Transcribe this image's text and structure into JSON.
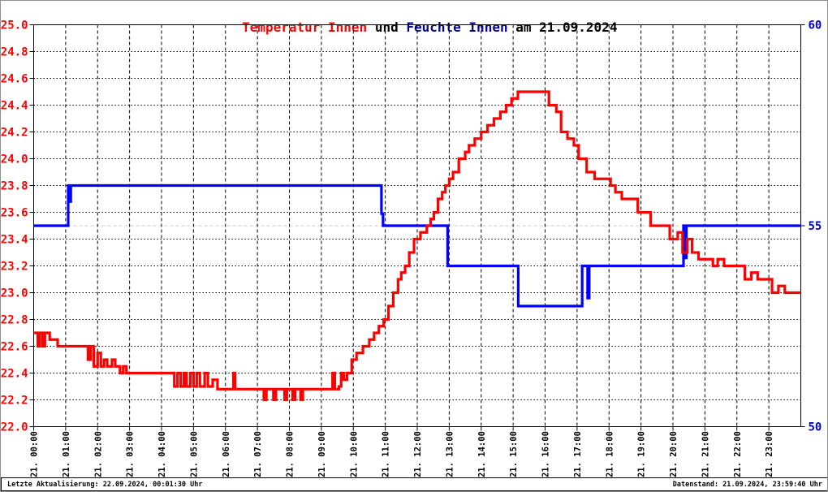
{
  "title": {
    "part_temp": "Temperatur Innen",
    "part_und": " und ",
    "part_feuchte": "Feuchte Innen",
    "part_date": " am 21.09.2024"
  },
  "footer": {
    "left": "Letzte Aktualisierung: 22.09.2024, 00:01:30 Uhr",
    "right": "Datenstand: 21.09.2024, 23:59:40 Uhr"
  },
  "colors": {
    "temperature_line": "#ff0000",
    "humidity_line": "#0000ff",
    "title_temp": "#ff0000",
    "title_feuchte": "#000099",
    "left_axis_labels": "#ff0000",
    "right_axis_labels": "#0000dd",
    "grid": "#000000",
    "grid_55_line": "#c8c8c8"
  },
  "chart_data": {
    "type": "line",
    "title": "Temperatur Innen und Feuchte Innen am 21.09.2024",
    "xlabel": "",
    "ylabel_left": "",
    "ylabel_right": "",
    "grid": true,
    "x_axis": {
      "range": [
        0,
        24
      ],
      "tick_hours": [
        0,
        1,
        2,
        3,
        4,
        5,
        6,
        7,
        8,
        9,
        10,
        11,
        12,
        13,
        14,
        15,
        16,
        17,
        18,
        19,
        20,
        21,
        22,
        23
      ],
      "tick_labels": [
        "21. 00:00",
        "21. 01:00",
        "21. 02:00",
        "21. 03:00",
        "21. 04:00",
        "21. 05:00",
        "21. 06:00",
        "21. 07:00",
        "21. 08:00",
        "21. 09:00",
        "21. 10:00",
        "21. 11:00",
        "21. 12:00",
        "21. 13:00",
        "21. 14:00",
        "21. 15:00",
        "21. 16:00",
        "21. 17:00",
        "21. 18:00",
        "21. 19:00",
        "21. 20:00",
        "21. 21:00",
        "21. 22:00",
        "21. 23:00"
      ]
    },
    "y_left": {
      "range": [
        22.0,
        25.0
      ],
      "ticks": [
        "25.0",
        "24.8",
        "24.6",
        "24.4",
        "24.2",
        "24.0",
        "23.8",
        "23.6",
        "23.4",
        "23.2",
        "23.0",
        "22.8",
        "22.6",
        "22.4",
        "22.2",
        "22.0"
      ]
    },
    "y_right": {
      "range": [
        50,
        60
      ],
      "ticks": [
        "60",
        "55",
        "50"
      ]
    },
    "series": [
      {
        "name": "Feuchte Innen",
        "axis": "right",
        "color": "#0000ff",
        "step": true,
        "points": [
          [
            0.0,
            55
          ],
          [
            1.05,
            55
          ],
          [
            1.08,
            56
          ],
          [
            1.12,
            55.6
          ],
          [
            1.16,
            56
          ],
          [
            10.85,
            56
          ],
          [
            10.88,
            55.3
          ],
          [
            10.93,
            55
          ],
          [
            12.9,
            55
          ],
          [
            12.95,
            54
          ],
          [
            15.1,
            54
          ],
          [
            15.16,
            53
          ],
          [
            17.1,
            53
          ],
          [
            17.16,
            54
          ],
          [
            17.3,
            54
          ],
          [
            17.33,
            53.2
          ],
          [
            17.38,
            54
          ],
          [
            20.3,
            54
          ],
          [
            20.33,
            55
          ],
          [
            20.37,
            54.2
          ],
          [
            20.42,
            55
          ],
          [
            24.0,
            55
          ]
        ]
      },
      {
        "name": "Temperatur Innen",
        "axis": "left",
        "color": "#ff0000",
        "step": true,
        "points": [
          [
            0.0,
            22.7
          ],
          [
            0.13,
            22.6
          ],
          [
            0.18,
            22.7
          ],
          [
            0.27,
            22.6
          ],
          [
            0.35,
            22.7
          ],
          [
            0.5,
            22.65
          ],
          [
            0.75,
            22.6
          ],
          [
            1.65,
            22.6
          ],
          [
            1.7,
            22.5
          ],
          [
            1.78,
            22.6
          ],
          [
            1.88,
            22.45
          ],
          [
            2.0,
            22.55
          ],
          [
            2.1,
            22.45
          ],
          [
            2.2,
            22.5
          ],
          [
            2.3,
            22.45
          ],
          [
            2.45,
            22.5
          ],
          [
            2.55,
            22.45
          ],
          [
            2.7,
            22.4
          ],
          [
            2.8,
            22.45
          ],
          [
            2.9,
            22.4
          ],
          [
            4.35,
            22.4
          ],
          [
            4.4,
            22.3
          ],
          [
            4.5,
            22.4
          ],
          [
            4.6,
            22.3
          ],
          [
            4.7,
            22.4
          ],
          [
            4.78,
            22.3
          ],
          [
            4.9,
            22.4
          ],
          [
            5.0,
            22.3
          ],
          [
            5.1,
            22.4
          ],
          [
            5.2,
            22.3
          ],
          [
            5.35,
            22.4
          ],
          [
            5.45,
            22.3
          ],
          [
            5.6,
            22.35
          ],
          [
            5.75,
            22.28
          ],
          [
            6.25,
            22.4
          ],
          [
            6.3,
            22.28
          ],
          [
            7.2,
            22.2
          ],
          [
            7.28,
            22.28
          ],
          [
            7.5,
            22.2
          ],
          [
            7.58,
            22.28
          ],
          [
            7.85,
            22.2
          ],
          [
            7.92,
            22.28
          ],
          [
            8.1,
            22.2
          ],
          [
            8.18,
            22.28
          ],
          [
            8.35,
            22.2
          ],
          [
            8.42,
            22.28
          ],
          [
            9.3,
            22.28
          ],
          [
            9.35,
            22.4
          ],
          [
            9.42,
            22.28
          ],
          [
            9.55,
            22.3
          ],
          [
            9.62,
            22.4
          ],
          [
            9.7,
            22.35
          ],
          [
            9.8,
            22.4
          ],
          [
            9.95,
            22.5
          ],
          [
            10.1,
            22.55
          ],
          [
            10.3,
            22.6
          ],
          [
            10.5,
            22.65
          ],
          [
            10.65,
            22.7
          ],
          [
            10.8,
            22.75
          ],
          [
            10.95,
            22.8
          ],
          [
            11.1,
            22.9
          ],
          [
            11.25,
            23.0
          ],
          [
            11.4,
            23.1
          ],
          [
            11.5,
            23.15
          ],
          [
            11.62,
            23.2
          ],
          [
            11.75,
            23.3
          ],
          [
            11.9,
            23.4
          ],
          [
            12.1,
            23.45
          ],
          [
            12.3,
            23.5
          ],
          [
            12.42,
            23.55
          ],
          [
            12.52,
            23.6
          ],
          [
            12.65,
            23.7
          ],
          [
            12.78,
            23.75
          ],
          [
            12.88,
            23.8
          ],
          [
            13.0,
            23.85
          ],
          [
            13.12,
            23.9
          ],
          [
            13.3,
            24.0
          ],
          [
            13.5,
            24.05
          ],
          [
            13.62,
            24.1
          ],
          [
            13.8,
            24.15
          ],
          [
            14.0,
            24.2
          ],
          [
            14.2,
            24.25
          ],
          [
            14.4,
            24.3
          ],
          [
            14.6,
            24.35
          ],
          [
            14.78,
            24.4
          ],
          [
            14.95,
            24.45
          ],
          [
            15.15,
            24.5
          ],
          [
            16.05,
            24.5
          ],
          [
            16.12,
            24.4
          ],
          [
            16.35,
            24.35
          ],
          [
            16.5,
            24.2
          ],
          [
            16.7,
            24.15
          ],
          [
            16.9,
            24.1
          ],
          [
            17.05,
            24.0
          ],
          [
            17.3,
            23.9
          ],
          [
            17.55,
            23.85
          ],
          [
            18.05,
            23.8
          ],
          [
            18.2,
            23.75
          ],
          [
            18.4,
            23.7
          ],
          [
            18.9,
            23.6
          ],
          [
            19.3,
            23.5
          ],
          [
            19.9,
            23.4
          ],
          [
            20.15,
            23.45
          ],
          [
            20.3,
            23.3
          ],
          [
            20.45,
            23.4
          ],
          [
            20.6,
            23.3
          ],
          [
            20.8,
            23.25
          ],
          [
            21.25,
            23.2
          ],
          [
            21.4,
            23.25
          ],
          [
            21.6,
            23.2
          ],
          [
            22.25,
            23.1
          ],
          [
            22.45,
            23.15
          ],
          [
            22.65,
            23.1
          ],
          [
            23.1,
            23.0
          ],
          [
            23.3,
            23.05
          ],
          [
            23.5,
            23.0
          ],
          [
            24.0,
            23.0
          ]
        ]
      }
    ]
  }
}
